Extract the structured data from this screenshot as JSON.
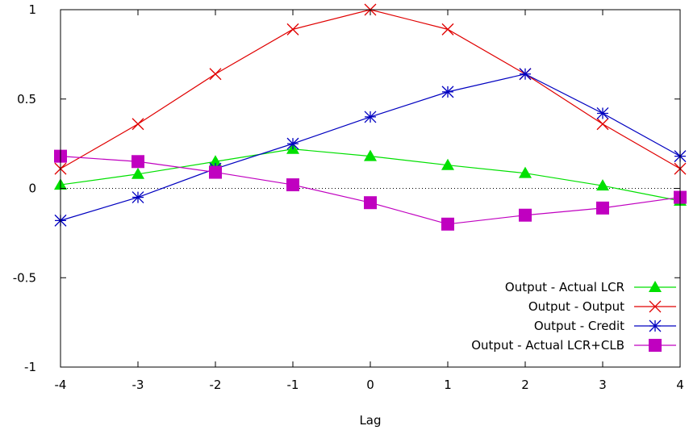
{
  "chart_data": {
    "type": "line",
    "title": "",
    "xlabel": "Lag",
    "ylabel": "",
    "xlim": [
      -4,
      4
    ],
    "ylim": [
      -1,
      1
    ],
    "xticks": [
      -4,
      -3,
      -2,
      -1,
      0,
      1,
      2,
      3,
      4
    ],
    "xtick_labels": [
      "-4",
      "-3",
      "-2",
      "-1",
      "0",
      "1",
      "2",
      "3",
      "4"
    ],
    "yticks": [
      -1,
      -0.5,
      0,
      0.5,
      1
    ],
    "ytick_labels": [
      "-1",
      "-0.5",
      "0",
      "0.5",
      "1"
    ],
    "zero_line": true,
    "grid": false,
    "legend_position": "bottom-right",
    "x": [
      -4,
      -3,
      -2,
      -1,
      0,
      1,
      2,
      3,
      4
    ],
    "series": [
      {
        "name": "Output - Actual LCR",
        "color": "#00e000",
        "marker": "triangle",
        "values": [
          0.02,
          0.08,
          0.15,
          0.22,
          0.18,
          0.13,
          0.085,
          0.015,
          -0.07
        ]
      },
      {
        "name": "Output - Output",
        "color": "#e00000",
        "marker": "x",
        "values": [
          0.11,
          0.36,
          0.64,
          0.89,
          1.0,
          0.89,
          0.64,
          0.36,
          0.11
        ]
      },
      {
        "name": "Output - Credit",
        "color": "#0000c0",
        "marker": "star",
        "values": [
          -0.18,
          -0.05,
          0.11,
          0.25,
          0.4,
          0.54,
          0.64,
          0.42,
          0.18
        ]
      },
      {
        "name": "Output - Actual LCR+CLB",
        "color": "#c000c0",
        "marker": "square",
        "values": [
          0.18,
          0.15,
          0.09,
          0.02,
          -0.08,
          -0.2,
          -0.15,
          -0.11,
          -0.05
        ]
      }
    ]
  }
}
